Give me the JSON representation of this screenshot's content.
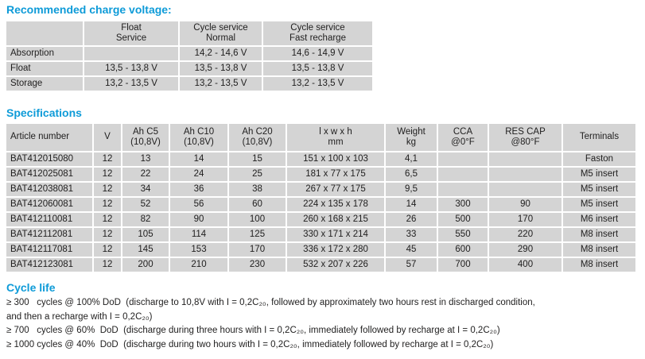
{
  "headings": {
    "charge": "Recommended charge voltage:",
    "specs": "Specifications",
    "cycle": "Cycle life"
  },
  "colors": {
    "heading_blue": "#0e9bd8",
    "cell_gray": "#d4d4d4",
    "text": "#1f1e1e"
  },
  "charge_table": {
    "columns": [
      "",
      "Float\nService",
      "Cycle service\nNormal",
      "Cycle service\nFast recharge"
    ],
    "rows": [
      [
        "Absorption",
        "",
        "14,2 - 14,6 V",
        "14,6 - 14,9 V"
      ],
      [
        "Float",
        "13,5 - 13,8 V",
        "13,5 - 13,8 V",
        "13,5 - 13,8 V"
      ],
      [
        "Storage",
        "13,2 - 13,5 V",
        "13,2 - 13,5 V",
        "13,2 - 13,5 V"
      ]
    ]
  },
  "specs_table": {
    "columns": [
      "Article number",
      "V",
      "Ah C5\n(10,8V)",
      "Ah C10\n(10,8V)",
      "Ah C20\n(10,8V)",
      "l x w x h\nmm",
      "Weight\nkg",
      "CCA\n@0°F",
      "RES CAP\n@80°F",
      "Terminals"
    ],
    "rows": [
      [
        "BAT412015080",
        "12",
        "13",
        "14",
        "15",
        "151 x 100 x 103",
        "4,1",
        "",
        "",
        "Faston"
      ],
      [
        "BAT412025081",
        "12",
        "22",
        "24",
        "25",
        "181 x 77 x 175",
        "6,5",
        "",
        "",
        "M5 insert"
      ],
      [
        "BAT412038081",
        "12",
        "34",
        "36",
        "38",
        "267 x 77 x 175",
        "9,5",
        "",
        "",
        "M5 insert"
      ],
      [
        "BAT412060081",
        "12",
        "52",
        "56",
        "60",
        "224 x 135 x 178",
        "14",
        "300",
        "90",
        "M5 insert"
      ],
      [
        "BAT412110081",
        "12",
        "82",
        "90",
        "100",
        "260 x 168 x 215",
        "26",
        "500",
        "170",
        "M6 insert"
      ],
      [
        "BAT412112081",
        "12",
        "105",
        "114",
        "125",
        "330 x 171 x 214",
        "33",
        "550",
        "220",
        "M8 insert"
      ],
      [
        "BAT412117081",
        "12",
        "145",
        "153",
        "170",
        "336 x 172 x 280",
        "45",
        "600",
        "290",
        "M8 insert"
      ],
      [
        "BAT412123081",
        "12",
        "200",
        "210",
        "230",
        "532 x 207 x 226",
        "57",
        "700",
        "400",
        "M8 insert"
      ]
    ]
  },
  "cycle_life": {
    "lines": [
      "≥ 300   cycles @ 100% DoD  (discharge to 10,8V with I = 0,2C₂₀, followed by approximately two hours rest in discharged condition,",
      "and then a recharge with I = 0,2C₂₀)",
      "≥ 700   cycles @ 60%  DoD  (discharge during three hours with I = 0,2C₂₀, immediately followed by recharge at I = 0,2C₂₀)",
      "≥ 1000 cycles @ 40%  DoD  (discharge during two hours with I = 0,2C₂₀, immediately followed by recharge at I = 0,2C₂₀)"
    ]
  }
}
